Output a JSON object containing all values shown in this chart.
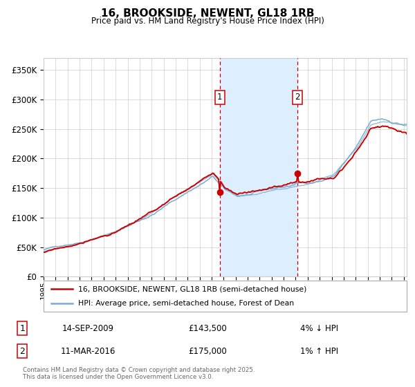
{
  "title": "16, BROOKSIDE, NEWENT, GL18 1RB",
  "subtitle": "Price paid vs. HM Land Registry's House Price Index (HPI)",
  "legend_line1": "16, BROOKSIDE, NEWENT, GL18 1RB (semi-detached house)",
  "legend_line2": "HPI: Average price, semi-detached house, Forest of Dean",
  "sale1_date": "14-SEP-2009",
  "sale1_price": 143500,
  "sale1_label": "4% ↓ HPI",
  "sale2_date": "11-MAR-2016",
  "sale2_price": 175000,
  "sale2_label": "1% ↑ HPI",
  "footer": "Contains HM Land Registry data © Crown copyright and database right 2025.\nThis data is licensed under the Open Government Licence v3.0.",
  "hpi_color": "#7aaad0",
  "sale_color": "#cc0000",
  "vline_color": "#cc0000",
  "shade_color": "#ddeeff",
  "grid_color": "#cccccc",
  "ylim": [
    0,
    370000
  ],
  "yticks": [
    0,
    50000,
    100000,
    150000,
    200000,
    250000,
    300000,
    350000
  ],
  "ytick_labels": [
    "£0",
    "£50K",
    "£100K",
    "£150K",
    "£200K",
    "£250K",
    "£300K",
    "£350K"
  ],
  "hpi_keypoints_t": [
    0,
    0.1,
    0.2,
    0.3,
    0.4,
    0.467,
    0.5,
    0.533,
    0.567,
    0.6,
    0.633,
    0.667,
    0.7,
    0.733,
    0.767,
    0.8,
    0.833,
    0.867,
    0.9,
    0.933,
    0.967,
    1.0
  ],
  "hpi_keypoints_v": [
    44000,
    58000,
    78000,
    108000,
    148000,
    172000,
    148000,
    138000,
    140000,
    143000,
    147000,
    150000,
    155000,
    158000,
    162000,
    170000,
    195000,
    220000,
    255000,
    260000,
    255000,
    252000
  ]
}
